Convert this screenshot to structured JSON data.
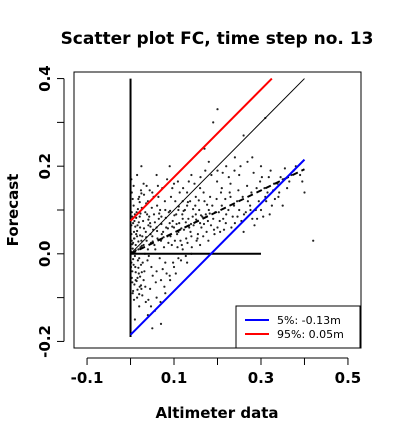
{
  "chart_data": {
    "type": "scatter",
    "title": "Scatter plot FC, time step no. 13",
    "xlabel": "Altimeter data",
    "ylabel": "Forecast",
    "xlim": [
      -0.13,
      0.53
    ],
    "ylim": [
      -0.215,
      0.415
    ],
    "x_ticks": [
      -0.1,
      0.1,
      0.3,
      0.5
    ],
    "x_tick_labels": [
      "-0.1",
      "0.1",
      "0.3",
      "0.5"
    ],
    "x_minor_ticks": [
      0.0,
      0.2,
      0.4
    ],
    "y_ticks": [
      -0.2,
      0.0,
      0.2,
      0.4
    ],
    "y_tick_labels": [
      "-0.2",
      "0.0",
      "0.2",
      "0.4"
    ],
    "y_minor_ticks": [
      -0.1,
      0.1,
      0.3
    ],
    "grid": false,
    "legend_position": "bottom-right",
    "legend": [
      {
        "label": "5%:  -0.13m",
        "color": "#0000ff"
      },
      {
        "label": "95%:  0.05m",
        "color": "#ff0000"
      }
    ],
    "lines": [
      {
        "kind": "vertical-axis-line",
        "x": [
          0.0,
          0.0
        ],
        "y": [
          -0.19,
          0.4
        ],
        "color": "#000000",
        "style": "solid"
      },
      {
        "kind": "horizontal-axis-line",
        "x": [
          0.0,
          0.3
        ],
        "y": [
          0.0,
          0.0
        ],
        "color": "#000000",
        "style": "solid"
      },
      {
        "kind": "identity",
        "x": [
          0.0,
          0.4
        ],
        "y": [
          0.0,
          0.4
        ],
        "color": "#000000",
        "style": "thin"
      },
      {
        "kind": "fit",
        "x": [
          0.0,
          0.4
        ],
        "y": [
          0.0,
          0.193
        ],
        "color": "#000000",
        "style": "dashed"
      },
      {
        "kind": "95%",
        "x": [
          0.0,
          0.325
        ],
        "y": [
          0.075,
          0.4
        ],
        "color": "#ff0000",
        "style": "solid"
      },
      {
        "kind": "5%",
        "x": [
          0.0,
          0.4
        ],
        "y": [
          -0.185,
          0.215
        ],
        "color": "#0000ff",
        "style": "solid"
      }
    ],
    "points": [
      [
        0.005,
        0.012
      ],
      [
        0.01,
        -0.005
      ],
      [
        0.003,
        0.03
      ],
      [
        0.008,
        0.05
      ],
      [
        0.002,
        -0.02
      ],
      [
        0.012,
        0.02
      ],
      [
        0.006,
        0.07
      ],
      [
        0.004,
        -0.04
      ],
      [
        0.015,
        0.04
      ],
      [
        0.018,
        0.01
      ],
      [
        0.02,
        -0.01
      ],
      [
        0.022,
        0.06
      ],
      [
        0.025,
        0.03
      ],
      [
        0.01,
        0.09
      ],
      [
        0.007,
        0.11
      ],
      [
        0.003,
        0.14
      ],
      [
        0.002,
        0.17
      ],
      [
        0.009,
        -0.07
      ],
      [
        0.005,
        -0.09
      ],
      [
        0.012,
        -0.06
      ],
      [
        0.03,
        0.02
      ],
      [
        0.035,
        0.05
      ],
      [
        0.028,
        -0.02
      ],
      [
        0.04,
        0.01
      ],
      [
        0.045,
        0.07
      ],
      [
        0.038,
        0.09
      ],
      [
        0.05,
        0.04
      ],
      [
        0.055,
        0.02
      ],
      [
        0.06,
        0.06
      ],
      [
        0.048,
        -0.03
      ],
      [
        0.065,
        0.08
      ],
      [
        0.07,
        0.03
      ],
      [
        0.075,
        0.05
      ],
      [
        0.08,
        0.1
      ],
      [
        0.085,
        0.04
      ],
      [
        0.09,
        0.07
      ],
      [
        0.095,
        0.02
      ],
      [
        0.1,
        0.06
      ],
      [
        0.105,
        0.09
      ],
      [
        0.11,
        0.05
      ],
      [
        0.115,
        0.03
      ],
      [
        0.12,
        0.08
      ],
      [
        0.13,
        0.11
      ],
      [
        0.135,
        0.06
      ],
      [
        0.14,
        0.04
      ],
      [
        0.15,
        0.09
      ],
      [
        0.16,
        0.07
      ],
      [
        0.17,
        0.12
      ],
      [
        0.175,
        0.05
      ],
      [
        0.18,
        0.1
      ],
      [
        0.19,
        0.08
      ],
      [
        0.2,
        0.06
      ],
      [
        0.21,
        0.11
      ],
      [
        0.22,
        0.09
      ],
      [
        0.23,
        0.13
      ],
      [
        0.24,
        0.07
      ],
      [
        0.25,
        0.1
      ],
      [
        0.26,
        0.05
      ],
      [
        0.27,
        0.12
      ],
      [
        0.28,
        0.08
      ],
      [
        0.29,
        0.15
      ],
      [
        0.3,
        0.1
      ],
      [
        0.31,
        0.13
      ],
      [
        0.32,
        0.09
      ],
      [
        0.33,
        0.16
      ],
      [
        0.35,
        0.11
      ],
      [
        0.37,
        0.18
      ],
      [
        0.4,
        0.14
      ],
      [
        0.42,
        0.03
      ],
      [
        0.38,
        0.2
      ],
      [
        0.31,
        0.31
      ],
      [
        0.26,
        0.27
      ],
      [
        0.2,
        0.33
      ],
      [
        0.19,
        0.3
      ],
      [
        0.17,
        0.24
      ],
      [
        0.24,
        0.22
      ],
      [
        0.22,
        0.2
      ],
      [
        0.14,
        0.18
      ],
      [
        0.1,
        0.16
      ],
      [
        0.09,
        0.2
      ],
      [
        0.06,
        0.18
      ],
      [
        0.05,
        0.14
      ],
      [
        0.04,
        0.12
      ],
      [
        0.03,
        0.16
      ],
      [
        0.025,
        0.2
      ],
      [
        0.015,
        0.18
      ],
      [
        0.02,
        0.13
      ],
      [
        0.06,
        -0.04
      ],
      [
        0.07,
        -0.06
      ],
      [
        0.08,
        -0.02
      ],
      [
        0.09,
        -0.05
      ],
      [
        0.1,
        -0.03
      ],
      [
        0.12,
        0.01
      ],
      [
        0.13,
        -0.02
      ],
      [
        0.14,
        0.0
      ],
      [
        0.16,
        0.02
      ],
      [
        0.11,
        -0.01
      ],
      [
        0.045,
        -0.08
      ],
      [
        0.03,
        -0.06
      ],
      [
        0.02,
        -0.12
      ],
      [
        0.01,
        -0.15
      ],
      [
        0.04,
        -0.14
      ],
      [
        0.06,
        -0.1
      ],
      [
        0.08,
        -0.09
      ],
      [
        0.05,
        -0.17
      ],
      [
        0.07,
        -0.16
      ],
      [
        0.015,
        -0.1
      ],
      [
        0.025,
        -0.08
      ],
      [
        0.035,
        -0.11
      ],
      [
        0.012,
        0.008
      ],
      [
        0.017,
        -0.015
      ],
      [
        0.023,
        0.015
      ],
      [
        0.027,
        0.04
      ],
      [
        0.033,
        0.0
      ],
      [
        0.037,
        0.03
      ],
      [
        0.042,
        -0.005
      ],
      [
        0.047,
        0.025
      ],
      [
        0.052,
        0.055
      ],
      [
        0.057,
        0.01
      ],
      [
        0.062,
        0.035
      ],
      [
        0.067,
        -0.01
      ],
      [
        0.072,
        0.045
      ],
      [
        0.077,
        0.015
      ],
      [
        0.082,
        0.06
      ],
      [
        0.087,
        0.025
      ],
      [
        0.092,
        0.04
      ],
      [
        0.097,
        0.075
      ],
      [
        0.102,
        0.03
      ],
      [
        0.107,
        0.045
      ],
      [
        0.112,
        0.07
      ],
      [
        0.118,
        0.02
      ],
      [
        0.123,
        0.055
      ],
      [
        0.128,
        0.035
      ],
      [
        0.133,
        0.08
      ],
      [
        0.138,
        0.05
      ],
      [
        0.145,
        0.065
      ],
      [
        0.155,
        0.045
      ],
      [
        0.165,
        0.085
      ],
      [
        0.185,
        0.065
      ],
      [
        0.195,
        0.095
      ],
      [
        0.205,
        0.075
      ],
      [
        0.215,
        0.055
      ],
      [
        0.225,
        0.1
      ],
      [
        0.235,
        0.085
      ],
      [
        0.245,
        0.12
      ],
      [
        0.255,
        0.075
      ],
      [
        0.265,
        0.095
      ],
      [
        0.275,
        0.11
      ],
      [
        0.285,
        0.065
      ],
      [
        0.295,
        0.12
      ],
      [
        0.305,
        0.085
      ],
      [
        0.315,
        0.14
      ],
      [
        0.325,
        0.11
      ],
      [
        0.34,
        0.13
      ],
      [
        0.36,
        0.15
      ],
      [
        0.345,
        0.175
      ],
      [
        0.3,
        0.2
      ],
      [
        0.28,
        0.22
      ],
      [
        0.25,
        0.18
      ],
      [
        0.23,
        0.16
      ],
      [
        0.21,
        0.15
      ],
      [
        0.2,
        0.19
      ],
      [
        0.18,
        0.21
      ],
      [
        0.16,
        0.15
      ],
      [
        0.15,
        0.13
      ],
      [
        0.13,
        0.14
      ],
      [
        0.12,
        0.12
      ],
      [
        0.11,
        0.1
      ],
      [
        0.004,
        0.022
      ],
      [
        0.006,
        -0.012
      ],
      [
        0.008,
        0.035
      ],
      [
        0.011,
        -0.03
      ],
      [
        0.013,
        0.045
      ],
      [
        0.016,
        0.065
      ],
      [
        0.019,
        -0.045
      ],
      [
        0.021,
        0.085
      ],
      [
        0.024,
        -0.025
      ],
      [
        0.026,
        0.105
      ],
      [
        0.029,
        0.075
      ],
      [
        0.032,
        -0.04
      ],
      [
        0.034,
        0.095
      ],
      [
        0.036,
        0.115
      ],
      [
        0.039,
        -0.015
      ],
      [
        0.041,
        0.065
      ],
      [
        0.043,
        0.085
      ],
      [
        0.046,
        0.045
      ],
      [
        0.049,
        0.105
      ],
      [
        0.051,
        -0.05
      ],
      [
        0.054,
        0.09
      ],
      [
        0.058,
        -0.065
      ],
      [
        0.061,
        0.11
      ],
      [
        0.064,
        0.13
      ],
      [
        0.068,
        0.1
      ],
      [
        0.071,
        0.085
      ],
      [
        0.074,
        -0.035
      ],
      [
        0.079,
        0.12
      ],
      [
        0.083,
        -0.045
      ],
      [
        0.088,
        0.095
      ],
      [
        0.093,
        0.13
      ],
      [
        0.098,
        -0.02
      ],
      [
        0.103,
        0.12
      ],
      [
        0.108,
        0.015
      ],
      [
        0.113,
        0.14
      ],
      [
        0.119,
        0.09
      ],
      [
        0.125,
        0.1
      ],
      [
        0.131,
        0.025
      ],
      [
        0.137,
        0.12
      ],
      [
        0.143,
        0.085
      ],
      [
        0.149,
        0.11
      ],
      [
        0.152,
        0.03
      ],
      [
        0.158,
        0.1
      ],
      [
        0.163,
        0.06
      ],
      [
        0.168,
        0.14
      ],
      [
        0.173,
        0.09
      ],
      [
        0.178,
        0.075
      ],
      [
        0.183,
        0.13
      ],
      [
        0.188,
        0.11
      ],
      [
        0.193,
        0.045
      ],
      [
        0.198,
        0.125
      ],
      [
        0.203,
        0.095
      ],
      [
        0.208,
        0.14
      ],
      [
        0.213,
        0.08
      ],
      [
        0.218,
        0.125
      ],
      [
        0.228,
        0.14
      ],
      [
        0.238,
        0.11
      ],
      [
        0.248,
        0.145
      ],
      [
        0.258,
        0.13
      ],
      [
        0.268,
        0.155
      ],
      [
        0.278,
        0.14
      ],
      [
        0.288,
        0.1
      ],
      [
        0.298,
        0.165
      ],
      [
        0.308,
        0.15
      ],
      [
        0.318,
        0.175
      ],
      [
        0.328,
        0.145
      ],
      [
        0.338,
        0.16
      ],
      [
        0.35,
        0.17
      ],
      [
        0.365,
        0.165
      ],
      [
        0.375,
        0.19
      ],
      [
        0.39,
        0.18
      ],
      [
        0.395,
        0.165
      ],
      [
        0.001,
        0.005
      ],
      [
        0.002,
        0.045
      ],
      [
        0.003,
        -0.055
      ],
      [
        0.004,
        0.085
      ],
      [
        0.005,
        0.125
      ],
      [
        0.006,
        -0.085
      ],
      [
        0.007,
        0.155
      ],
      [
        0.008,
        -0.105
      ],
      [
        0.009,
        0.035
      ],
      [
        0.001,
        -0.03
      ],
      [
        0.002,
        0.065
      ],
      [
        0.003,
        0.095
      ],
      [
        0.004,
        -0.065
      ],
      [
        0.006,
        0.025
      ],
      [
        0.007,
        -0.025
      ],
      [
        0.009,
        0.075
      ],
      [
        0.014,
        0.095
      ],
      [
        0.016,
        -0.055
      ],
      [
        0.018,
        0.125
      ],
      [
        0.021,
        -0.075
      ],
      [
        0.024,
        0.145
      ],
      [
        0.027,
        -0.095
      ],
      [
        0.031,
        0.135
      ],
      [
        0.034,
        -0.075
      ],
      [
        0.037,
        0.155
      ],
      [
        0.041,
        -0.105
      ],
      [
        0.044,
        0.145
      ],
      [
        0.047,
        -0.12
      ],
      [
        0.053,
        0.13
      ],
      [
        0.056,
        -0.13
      ],
      [
        0.063,
        0.155
      ],
      [
        0.069,
        -0.11
      ],
      [
        0.073,
        0.15
      ],
      [
        0.078,
        -0.075
      ],
      [
        0.084,
        0.17
      ],
      [
        0.091,
        -0.06
      ],
      [
        0.096,
        0.15
      ],
      [
        0.104,
        -0.045
      ],
      [
        0.109,
        0.165
      ],
      [
        0.116,
        -0.015
      ],
      [
        0.121,
        0.15
      ],
      [
        0.127,
        -0.005
      ],
      [
        0.134,
        0.165
      ],
      [
        0.141,
        0.015
      ],
      [
        0.147,
        0.16
      ],
      [
        0.154,
        0.035
      ],
      [
        0.161,
        0.175
      ],
      [
        0.167,
        0.04
      ],
      [
        0.172,
        0.19
      ],
      [
        0.179,
        0.03
      ],
      [
        0.186,
        0.18
      ],
      [
        0.192,
        0.055
      ],
      [
        0.199,
        0.165
      ],
      [
        0.206,
        0.05
      ],
      [
        0.212,
        0.185
      ],
      [
        0.219,
        0.07
      ],
      [
        0.226,
        0.175
      ],
      [
        0.232,
        0.06
      ],
      [
        0.239,
        0.19
      ],
      [
        0.246,
        0.085
      ],
      [
        0.253,
        0.2
      ],
      [
        0.261,
        0.09
      ],
      [
        0.269,
        0.21
      ],
      [
        0.276,
        0.1
      ],
      [
        0.283,
        0.185
      ],
      [
        0.291,
        0.08
      ],
      [
        0.302,
        0.175
      ],
      [
        0.312,
        0.12
      ],
      [
        0.322,
        0.19
      ],
      [
        0.332,
        0.125
      ],
      [
        0.342,
        0.14
      ],
      [
        0.355,
        0.195
      ],
      [
        0.018,
        0.028
      ],
      [
        0.022,
        0.042
      ],
      [
        0.026,
        0.018
      ],
      [
        0.031,
        0.058
      ],
      [
        0.036,
        0.038
      ],
      [
        0.041,
        0.078
      ],
      [
        0.046,
        0.062
      ],
      [
        0.051,
        0.028
      ],
      [
        0.056,
        0.072
      ],
      [
        0.061,
        0.052
      ],
      [
        0.066,
        0.092
      ],
      [
        0.071,
        0.068
      ],
      [
        0.076,
        0.038
      ],
      [
        0.081,
        0.082
      ],
      [
        0.086,
        0.058
      ],
      [
        0.091,
        0.098
      ],
      [
        0.096,
        0.062
      ],
      [
        0.101,
        0.088
      ],
      [
        0.106,
        0.068
      ],
      [
        0.111,
        0.108
      ],
      [
        0.117,
        0.058
      ],
      [
        0.122,
        0.098
      ],
      [
        0.127,
        0.072
      ],
      [
        0.132,
        0.118
      ],
      [
        0.139,
        0.068
      ],
      [
        0.144,
        0.102
      ],
      [
        0.151,
        0.078
      ],
      [
        0.157,
        0.122
      ],
      [
        0.162,
        0.088
      ],
      [
        0.169,
        0.068
      ],
      [
        0.176,
        0.112
      ],
      [
        0.182,
        0.092
      ],
      [
        0.011,
        0.062
      ],
      [
        0.013,
        0.082
      ],
      [
        0.015,
        0.052
      ],
      [
        0.017,
        0.102
      ],
      [
        0.019,
        0.072
      ],
      [
        0.021,
        0.118
      ],
      [
        0.023,
        0.092
      ],
      [
        0.025,
        0.138
      ],
      [
        0.012,
        -0.042
      ],
      [
        0.014,
        -0.062
      ],
      [
        0.016,
        -0.082
      ],
      [
        0.018,
        -0.032
      ],
      [
        0.02,
        -0.092
      ],
      [
        0.022,
        -0.052
      ],
      [
        0.024,
        -0.072
      ],
      [
        0.026,
        -0.042
      ]
    ]
  }
}
